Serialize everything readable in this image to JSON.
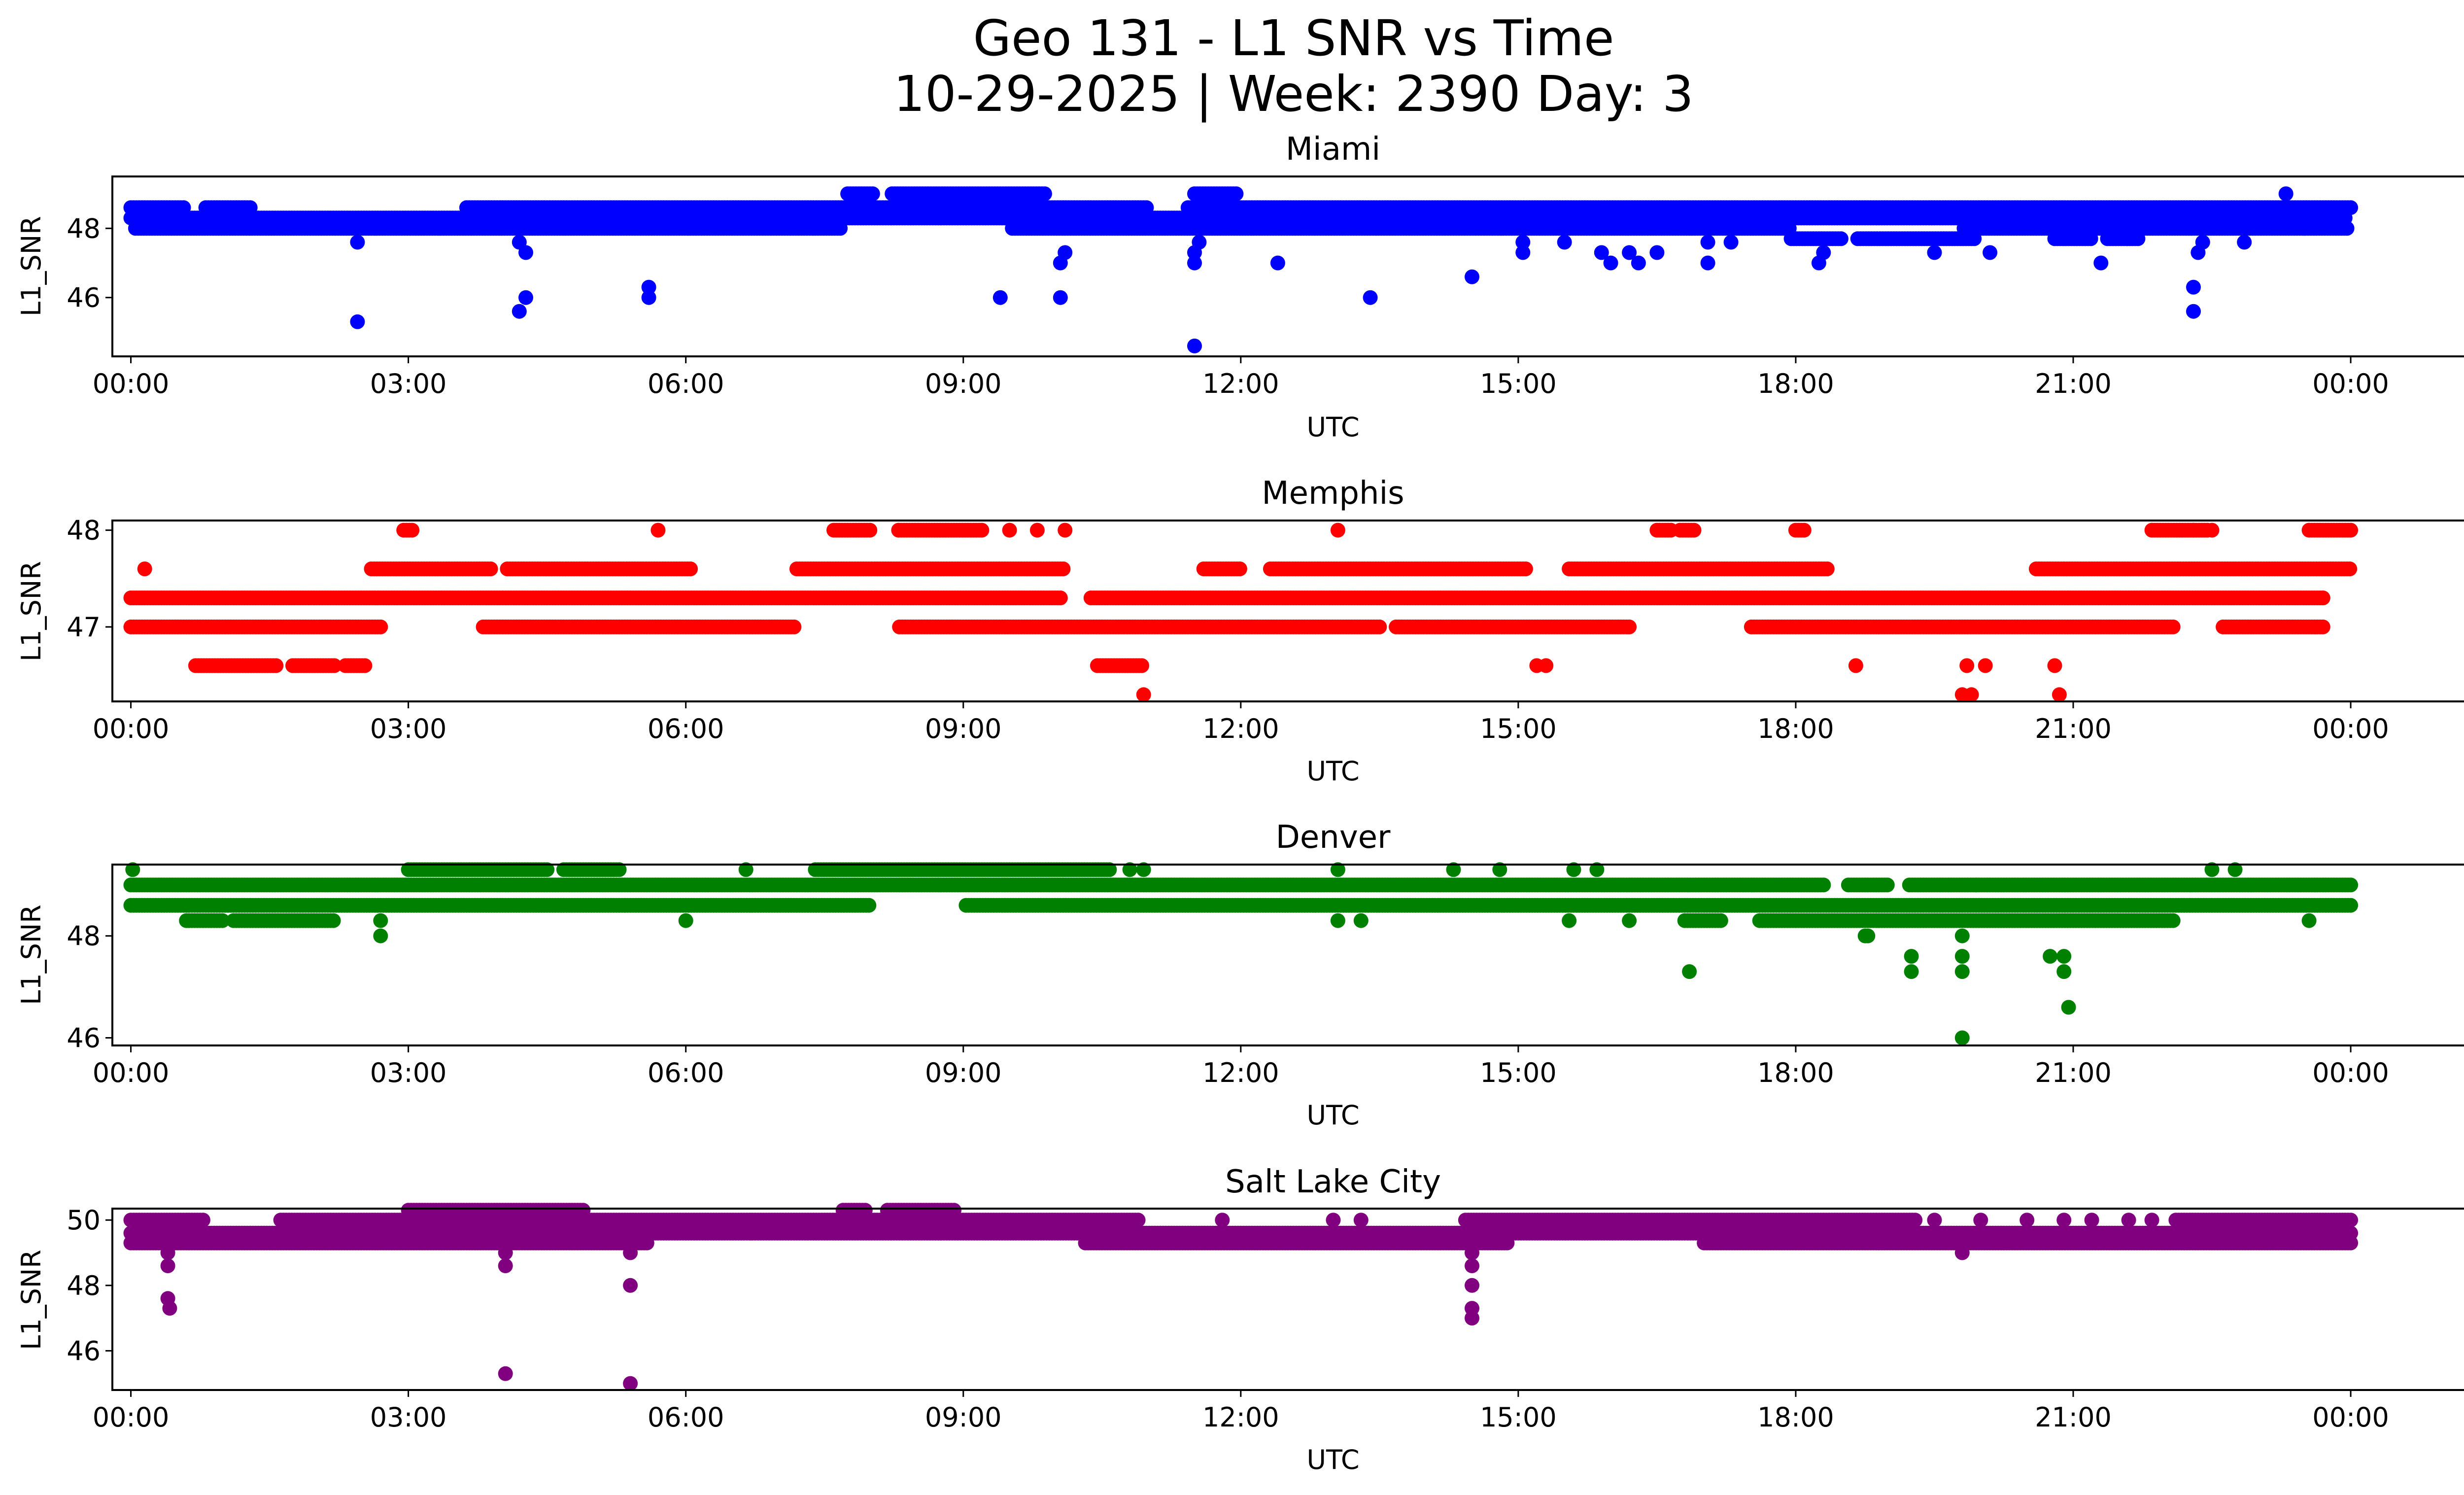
{
  "figure": {
    "title_line1": "Geo 131 - L1 SNR vs Time",
    "title_line2": "10-29-2025 | Week: 2390 Day: 3"
  },
  "chart_data": [
    {
      "type": "scatter",
      "title": "Miami",
      "xlabel": "UTC",
      "ylabel": "L1_SNR",
      "color": "#0000ff",
      "xlim": [
        -0.2,
        26.2
      ],
      "ylim": [
        44.3,
        49.5
      ],
      "yticks": [
        46,
        48
      ],
      "bands": [
        {
          "y": 48.0,
          "x0": 0.05,
          "x1": 23.97,
          "gaps": [
            [
              7.7,
              9.5
            ],
            [
              17.95,
              19.8
            ]
          ]
        },
        {
          "y": 48.3,
          "x0": 0.0,
          "x1": 23.95,
          "gaps": []
        },
        {
          "y": 48.6,
          "x0": 0.0,
          "x1": 24.0,
          "gaps": [
            [
              0.6,
              0.8
            ],
            [
              1.3,
              3.6
            ],
            [
              11.0,
              11.4
            ]
          ]
        },
        {
          "y": 49.0,
          "x0": 7.75,
          "x1": 9.9,
          "gaps": [
            [
              8.05,
              8.2
            ]
          ]
        },
        {
          "y": 49.0,
          "x0": 11.5,
          "x1": 11.95,
          "gaps": []
        },
        {
          "y": 47.7,
          "x0": 17.95,
          "x1": 19.95,
          "gaps": [
            [
              18.5,
              18.65
            ]
          ]
        },
        {
          "y": 47.7,
          "x0": 20.8,
          "x1": 21.7,
          "gaps": [
            [
              21.2,
              21.35
            ]
          ]
        }
      ],
      "points": [
        [
          2.45,
          45.3
        ],
        [
          2.45,
          47.6
        ],
        [
          4.2,
          45.6
        ],
        [
          4.27,
          46.0
        ],
        [
          4.27,
          47.3
        ],
        [
          4.2,
          47.6
        ],
        [
          5.6,
          46.0
        ],
        [
          5.6,
          46.3
        ],
        [
          9.4,
          46.0
        ],
        [
          10.05,
          46.0
        ],
        [
          10.05,
          47.0
        ],
        [
          10.1,
          47.3
        ],
        [
          11.5,
          44.6
        ],
        [
          11.5,
          47.0
        ],
        [
          11.5,
          47.3
        ],
        [
          11.55,
          47.6
        ],
        [
          12.4,
          47.0
        ],
        [
          13.4,
          46.0
        ],
        [
          14.5,
          46.6
        ],
        [
          15.05,
          47.3
        ],
        [
          15.05,
          47.6
        ],
        [
          15.5,
          47.6
        ],
        [
          15.9,
          47.3
        ],
        [
          16.0,
          47.0
        ],
        [
          16.2,
          47.3
        ],
        [
          16.3,
          47.0
        ],
        [
          16.5,
          47.3
        ],
        [
          17.05,
          47.0
        ],
        [
          17.05,
          47.6
        ],
        [
          17.3,
          47.6
        ],
        [
          18.25,
          47.0
        ],
        [
          18.3,
          47.3
        ],
        [
          19.5,
          47.3
        ],
        [
          20.1,
          47.3
        ],
        [
          21.3,
          47.0
        ],
        [
          22.3,
          45.6
        ],
        [
          22.3,
          46.3
        ],
        [
          22.35,
          47.3
        ],
        [
          22.4,
          47.6
        ],
        [
          22.85,
          47.6
        ],
        [
          23.3,
          49.0
        ],
        [
          23.5,
          48.0
        ]
      ],
      "xticks": [
        "00:00",
        "03:00",
        "06:00",
        "09:00",
        "12:00",
        "15:00",
        "18:00",
        "21:00",
        "00:00"
      ]
    },
    {
      "type": "scatter",
      "title": "Memphis",
      "xlabel": "UTC",
      "ylabel": "L1_SNR",
      "color": "#ff0000",
      "xlim": [
        -0.2,
        26.2
      ],
      "ylim": [
        46.23,
        48.1
      ],
      "yticks": [
        47,
        48
      ],
      "bands": [
        {
          "y": 47.3,
          "x0": 0.0,
          "x1": 23.7,
          "gaps": [
            [
              10.05,
              10.35
            ]
          ]
        },
        {
          "y": 47.0,
          "x0": 0.0,
          "x1": 23.7,
          "gaps": [
            [
              2.7,
              3.8
            ],
            [
              7.2,
              8.3
            ],
            [
              13.5,
              13.65
            ],
            [
              16.2,
              17.5
            ],
            [
              22.1,
              22.6
            ]
          ]
        },
        {
          "y": 47.6,
          "x0": 2.6,
          "x1": 6.05,
          "gaps": [
            [
              3.9,
              4.05
            ]
          ]
        },
        {
          "y": 47.6,
          "x0": 7.2,
          "x1": 10.1,
          "gaps": []
        },
        {
          "y": 47.6,
          "x0": 11.6,
          "x1": 15.1,
          "gaps": [
            [
              12.0,
              12.3
            ]
          ]
        },
        {
          "y": 47.6,
          "x0": 15.55,
          "x1": 18.35,
          "gaps": []
        },
        {
          "y": 47.6,
          "x0": 20.6,
          "x1": 24.0,
          "gaps": []
        },
        {
          "y": 46.6,
          "x0": 0.7,
          "x1": 2.55,
          "gaps": [
            [
              1.6,
              1.75
            ],
            [
              2.2,
              2.3
            ]
          ]
        },
        {
          "y": 46.6,
          "x0": 10.45,
          "x1": 10.95,
          "gaps": []
        },
        {
          "y": 48.0,
          "x0": 2.95,
          "x1": 3.05,
          "gaps": []
        },
        {
          "y": 48.0,
          "x0": 7.6,
          "x1": 8.0,
          "gaps": []
        },
        {
          "y": 48.0,
          "x0": 8.3,
          "x1": 9.2,
          "gaps": []
        },
        {
          "y": 48.0,
          "x0": 16.5,
          "x1": 16.65,
          "gaps": []
        },
        {
          "y": 48.0,
          "x0": 16.75,
          "x1": 16.9,
          "gaps": []
        },
        {
          "y": 48.0,
          "x0": 18.0,
          "x1": 18.1,
          "gaps": []
        },
        {
          "y": 48.0,
          "x0": 21.85,
          "x1": 22.45,
          "gaps": []
        },
        {
          "y": 48.0,
          "x0": 23.55,
          "x1": 24.0,
          "gaps": []
        }
      ],
      "points": [
        [
          0.15,
          47.6
        ],
        [
          5.7,
          48.0
        ],
        [
          9.5,
          48.0
        ],
        [
          9.8,
          48.0
        ],
        [
          10.1,
          48.0
        ],
        [
          10.95,
          46.3
        ],
        [
          13.05,
          48.0
        ],
        [
          15.2,
          46.6
        ],
        [
          15.3,
          46.6
        ],
        [
          18.65,
          46.6
        ],
        [
          19.8,
          46.3
        ],
        [
          19.9,
          46.3
        ],
        [
          19.85,
          46.6
        ],
        [
          20.05,
          46.6
        ],
        [
          20.8,
          46.6
        ],
        [
          20.85,
          46.3
        ],
        [
          22.3,
          48.0
        ],
        [
          22.5,
          48.0
        ]
      ],
      "xticks": [
        "00:00",
        "03:00",
        "06:00",
        "09:00",
        "12:00",
        "15:00",
        "18:00",
        "21:00",
        "00:00"
      ]
    },
    {
      "type": "scatter",
      "title": "Denver",
      "xlabel": "UTC",
      "ylabel": "L1_SNR",
      "color": "#008000",
      "xlim": [
        -0.2,
        26.2
      ],
      "ylim": [
        45.85,
        49.4
      ],
      "yticks": [
        46,
        48
      ],
      "bands": [
        {
          "y": 49.0,
          "x0": 0.0,
          "x1": 24.0,
          "gaps": [
            [
              18.3,
              18.55
            ],
            [
              19.0,
              19.2
            ]
          ]
        },
        {
          "y": 48.6,
          "x0": 0.0,
          "x1": 24.0,
          "gaps": [
            [
              8.0,
              9.0
            ]
          ]
        },
        {
          "y": 48.3,
          "x0": 0.6,
          "x1": 2.2,
          "gaps": [
            [
              1.0,
              1.1
            ]
          ]
        },
        {
          "y": 48.3,
          "x0": 16.8,
          "x1": 22.1,
          "gaps": [
            [
              17.2,
              17.6
            ]
          ]
        },
        {
          "y": 49.3,
          "x0": 3.0,
          "x1": 5.3,
          "gaps": [
            [
              4.5,
              4.65
            ]
          ]
        },
        {
          "y": 49.3,
          "x0": 7.4,
          "x1": 10.6,
          "gaps": []
        },
        {
          "y": 48.0,
          "x0": 18.75,
          "x1": 18.8,
          "gaps": []
        }
      ],
      "points": [
        [
          0.02,
          49.3
        ],
        [
          2.7,
          48.0
        ],
        [
          2.7,
          48.3
        ],
        [
          6.0,
          48.3
        ],
        [
          6.65,
          49.3
        ],
        [
          10.8,
          49.3
        ],
        [
          10.95,
          49.3
        ],
        [
          13.05,
          48.3
        ],
        [
          13.3,
          48.3
        ],
        [
          13.05,
          49.3
        ],
        [
          14.3,
          49.3
        ],
        [
          14.8,
          49.3
        ],
        [
          15.55,
          48.3
        ],
        [
          15.6,
          49.3
        ],
        [
          15.85,
          49.3
        ],
        [
          16.2,
          48.3
        ],
        [
          16.85,
          47.3
        ],
        [
          19.25,
          47.6
        ],
        [
          19.25,
          47.3
        ],
        [
          19.8,
          46.0
        ],
        [
          19.8,
          48.0
        ],
        [
          19.8,
          47.6
        ],
        [
          19.8,
          47.3
        ],
        [
          19.95,
          49.0
        ],
        [
          20.75,
          47.6
        ],
        [
          20.9,
          47.6
        ],
        [
          20.9,
          47.3
        ],
        [
          20.95,
          46.6
        ],
        [
          22.5,
          49.3
        ],
        [
          22.75,
          49.3
        ],
        [
          23.55,
          48.3
        ]
      ],
      "xticks": [
        "00:00",
        "03:00",
        "06:00",
        "09:00",
        "12:00",
        "15:00",
        "18:00",
        "21:00",
        "00:00"
      ]
    },
    {
      "type": "scatter",
      "title": "Salt Lake City",
      "xlabel": "UTC",
      "ylabel": "L1_SNR",
      "color": "#800080",
      "xlim": [
        -0.2,
        26.2
      ],
      "ylim": [
        44.8,
        50.35
      ],
      "yticks": [
        46,
        48,
        50
      ],
      "bands": [
        {
          "y": 49.6,
          "x0": 0.0,
          "x1": 24.0,
          "gaps": []
        },
        {
          "y": 50.0,
          "x0": 0.0,
          "x1": 24.0,
          "gaps": [
            [
              0.8,
              1.6
            ],
            [
              10.9,
              14.4
            ],
            [
              19.3,
              22.1
            ]
          ]
        },
        {
          "y": 49.3,
          "x0": 0.0,
          "x1": 24.0,
          "gaps": [
            [
              5.6,
              10.3
            ],
            [
              14.9,
              17.0
            ]
          ]
        },
        {
          "y": 50.3,
          "x0": 3.0,
          "x1": 4.9,
          "gaps": []
        },
        {
          "y": 50.3,
          "x0": 7.7,
          "x1": 8.9,
          "gaps": [
            [
              7.95,
              8.15
            ]
          ]
        }
      ],
      "points": [
        [
          0.4,
          48.6
        ],
        [
          0.4,
          49.0
        ],
        [
          0.4,
          47.6
        ],
        [
          0.42,
          47.3
        ],
        [
          4.05,
          48.6
        ],
        [
          4.05,
          49.0
        ],
        [
          4.05,
          45.3
        ],
        [
          5.4,
          49.0
        ],
        [
          5.4,
          48.0
        ],
        [
          5.4,
          45.0
        ],
        [
          14.5,
          48.6
        ],
        [
          14.5,
          48.0
        ],
        [
          14.5,
          47.3
        ],
        [
          14.5,
          47.0
        ],
        [
          14.5,
          49.0
        ],
        [
          19.8,
          49.0
        ],
        [
          11.8,
          50.0
        ],
        [
          13.0,
          50.0
        ],
        [
          13.3,
          50.0
        ],
        [
          19.5,
          50.0
        ],
        [
          20.0,
          50.0
        ],
        [
          20.5,
          50.0
        ],
        [
          20.9,
          50.0
        ],
        [
          21.2,
          50.0
        ],
        [
          21.6,
          50.0
        ],
        [
          21.85,
          50.0
        ]
      ],
      "xticks": [
        "00:00",
        "03:00",
        "06:00",
        "09:00",
        "12:00",
        "15:00",
        "18:00",
        "21:00",
        "00:00"
      ]
    }
  ]
}
